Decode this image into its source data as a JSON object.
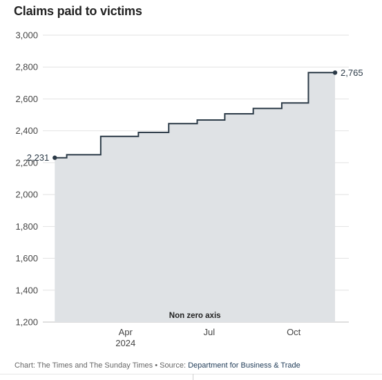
{
  "chart_data": {
    "type": "area",
    "title": "Claims paid to victims",
    "xlabel": "",
    "ylabel": "",
    "ylim": [
      1200,
      3000
    ],
    "yticks": [
      1200,
      1400,
      1600,
      1800,
      2000,
      2200,
      2400,
      2600,
      2800,
      3000
    ],
    "ytick_labels": [
      "1,200",
      "1,400",
      "1,600",
      "1,800",
      "2,000",
      "2,200",
      "2,400",
      "2,600",
      "2,800",
      "3,000"
    ],
    "xlim": [
      "2024-01-02",
      "2024-11-30"
    ],
    "xticks": [
      {
        "date": "2024-04-01",
        "label": "Apr",
        "sublabel": "2024"
      },
      {
        "date": "2024-07-01",
        "label": "Jul",
        "sublabel": ""
      },
      {
        "date": "2024-10-01",
        "label": "Oct",
        "sublabel": ""
      }
    ],
    "step": "post",
    "x": [
      "2024-01-15",
      "2024-01-28",
      "2024-03-05",
      "2024-04-15",
      "2024-05-18",
      "2024-06-18",
      "2024-07-18",
      "2024-08-18",
      "2024-09-18",
      "2024-10-17",
      "2024-11-15"
    ],
    "values": [
      2231,
      2250,
      2365,
      2390,
      2445,
      2468,
      2507,
      2540,
      2575,
      2765,
      2765
    ],
    "data_labels": [
      {
        "index": 0,
        "text": "2,231"
      },
      {
        "index": 10,
        "text": "2,765"
      }
    ],
    "annotation": "Non zero axis",
    "grid": true,
    "colors": {
      "line": "#2b3a47",
      "area": "#dfe2e5",
      "grid": "#e2e2e2"
    }
  },
  "footer": {
    "credit": "Chart: The Times and The Sunday Times • Source: ",
    "source": "Department for Business & Trade"
  }
}
